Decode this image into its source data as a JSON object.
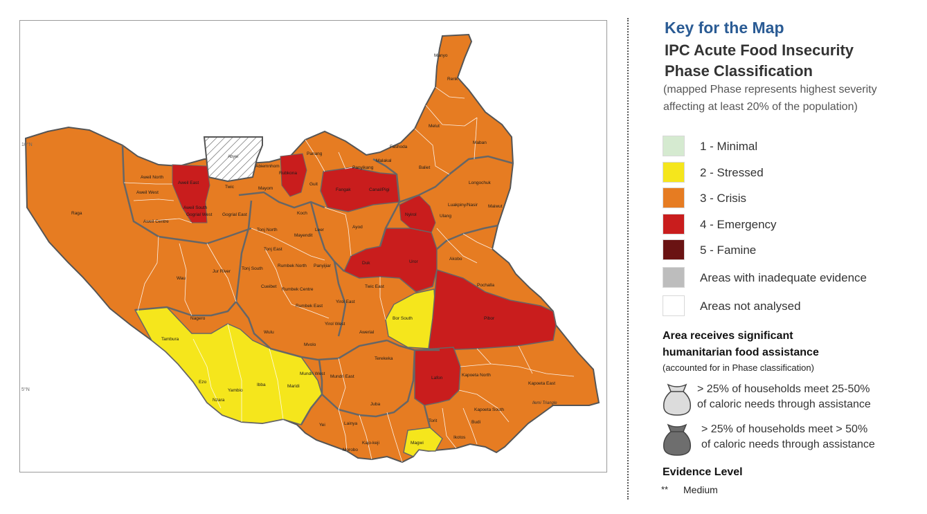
{
  "legend": {
    "key_title": "Key for the Map",
    "ipc_title_line1": "IPC Acute Food Insecurity",
    "ipc_title_line2": "Phase Classification",
    "note_line1": "(mapped Phase represents highest severity",
    "note_line2": "affecting at least 20% of the population)",
    "phases": [
      {
        "label": "1 - Minimal",
        "color": "#d5ead0"
      },
      {
        "label": "2 - Stressed",
        "color": "#f5e61c"
      },
      {
        "label": "3 - Crisis",
        "color": "#e67c22"
      },
      {
        "label": "4 - Emergency",
        "color": "#c91d1d"
      },
      {
        "label": "5 - Famine",
        "color": "#6a1313"
      },
      {
        "label": "Areas with inadequate evidence",
        "color": "#bdbdbd"
      },
      {
        "label": "Areas not analysed",
        "color": "#ffffff"
      }
    ],
    "assistance_title_line1": "Area receives significant",
    "assistance_title_line2": "humanitarian food assistance",
    "assistance_note": "(accounted for in Phase classification)",
    "assistance_items": [
      {
        "line1": "> 25% of households meet 25-50%",
        "line2": "of caloric needs through assistance",
        "icon": "light-food-bag-icon",
        "color": "#dcdcdc"
      },
      {
        "line1": "> 25% of households meet > 50%",
        "line2": "of caloric needs through assistance",
        "icon": "dark-food-bag-icon",
        "color": "#6e6e6e"
      }
    ],
    "evidence_title": "Evidence Level",
    "evidence_stars": "**",
    "evidence_label": "Medium"
  },
  "map": {
    "labels": {
      "lat10": "10°N",
      "lat5": "5°N",
      "abyei": "Abyei",
      "ilemi": "Ilemi Triangle"
    },
    "counties": [
      {
        "name": "Manyo",
        "phase": 3
      },
      {
        "name": "Renk",
        "phase": 3
      },
      {
        "name": "Melut",
        "phase": 3
      },
      {
        "name": "Maban",
        "phase": 3
      },
      {
        "name": "Fashoda",
        "phase": 3
      },
      {
        "name": "Panang",
        "phase": 3
      },
      {
        "name": "Malakal",
        "phase": 3
      },
      {
        "name": "Baliet",
        "phase": 3
      },
      {
        "name": "Longochuk",
        "phase": 3
      },
      {
        "name": "Abiemnhom",
        "phase": 3
      },
      {
        "name": "Rubkona",
        "phase": 4
      },
      {
        "name": "Guit",
        "phase": 3
      },
      {
        "name": "Fangak",
        "phase": 4
      },
      {
        "name": "Canal/Pigi",
        "phase": 4
      },
      {
        "name": "Panyikang",
        "phase": 3
      },
      {
        "name": "Luakpiny/Nasir",
        "phase": 3
      },
      {
        "name": "Maiwut",
        "phase": 3
      },
      {
        "name": "Ulang",
        "phase": 3
      },
      {
        "name": "Nyirol",
        "phase": 4
      },
      {
        "name": "Aweil North",
        "phase": 3
      },
      {
        "name": "Aweil East",
        "phase": 4
      },
      {
        "name": "Aweil West",
        "phase": 3
      },
      {
        "name": "Aweil South",
        "phase": 4
      },
      {
        "name": "Aweil Centre",
        "phase": 3
      },
      {
        "name": "Twic",
        "phase": 3
      },
      {
        "name": "Mayom",
        "phase": 3
      },
      {
        "name": "Gogrial West",
        "phase": 3
      },
      {
        "name": "Gogrial East",
        "phase": 3
      },
      {
        "name": "Koch",
        "phase": 3
      },
      {
        "name": "Leer",
        "phase": 3
      },
      {
        "name": "Mayendit",
        "phase": 3
      },
      {
        "name": "Ayod",
        "phase": 3
      },
      {
        "name": "Raga",
        "phase": 3
      },
      {
        "name": "Tonj North",
        "phase": 3
      },
      {
        "name": "Tonj East",
        "phase": 3
      },
      {
        "name": "Tonj South",
        "phase": 3
      },
      {
        "name": "Jur River",
        "phase": 3
      },
      {
        "name": "Wau",
        "phase": 3
      },
      {
        "name": "Rumbek North",
        "phase": 3
      },
      {
        "name": "Panyijiar",
        "phase": 3
      },
      {
        "name": "Duk",
        "phase": 4
      },
      {
        "name": "Uror",
        "phase": 4
      },
      {
        "name": "Akobo",
        "phase": 3
      },
      {
        "name": "Pochalla",
        "phase": 3
      },
      {
        "name": "Cueibet",
        "phase": 3
      },
      {
        "name": "Rumbek Centre",
        "phase": 3
      },
      {
        "name": "Rumbek East",
        "phase": 3
      },
      {
        "name": "Twic East",
        "phase": 3
      },
      {
        "name": "Yirol East",
        "phase": 3
      },
      {
        "name": "Yirol West",
        "phase": 3
      },
      {
        "name": "Bor South",
        "phase": 2
      },
      {
        "name": "Pibor",
        "phase": 4
      },
      {
        "name": "Nagero",
        "phase": 3
      },
      {
        "name": "Wulu",
        "phase": 3
      },
      {
        "name": "Awerial",
        "phase": 3
      },
      {
        "name": "Tambura",
        "phase": 2
      },
      {
        "name": "Mvolo",
        "phase": 3
      },
      {
        "name": "Terekeka",
        "phase": 3
      },
      {
        "name": "Lafon",
        "phase": 4
      },
      {
        "name": "Kapoeta North",
        "phase": 3
      },
      {
        "name": "Kapoeta East",
        "phase": 3
      },
      {
        "name": "Ezo",
        "phase": 2
      },
      {
        "name": "Yambio",
        "phase": 2
      },
      {
        "name": "Ibba",
        "phase": 2
      },
      {
        "name": "Maridi",
        "phase": 2
      },
      {
        "name": "Mundri West",
        "phase": 3
      },
      {
        "name": "Mundri East",
        "phase": 3
      },
      {
        "name": "Nzara",
        "phase": 2
      },
      {
        "name": "Juba",
        "phase": 3
      },
      {
        "name": "Kapoeta South",
        "phase": 3
      },
      {
        "name": "Torit",
        "phase": 3
      },
      {
        "name": "Budi",
        "phase": 3
      },
      {
        "name": "Yei",
        "phase": 3
      },
      {
        "name": "Lainya",
        "phase": 3
      },
      {
        "name": "Ikotos",
        "phase": 3
      },
      {
        "name": "Kajo-keji",
        "phase": 3
      },
      {
        "name": "Magwi",
        "phase": 2
      },
      {
        "name": "Morobo",
        "phase": 3
      }
    ]
  }
}
